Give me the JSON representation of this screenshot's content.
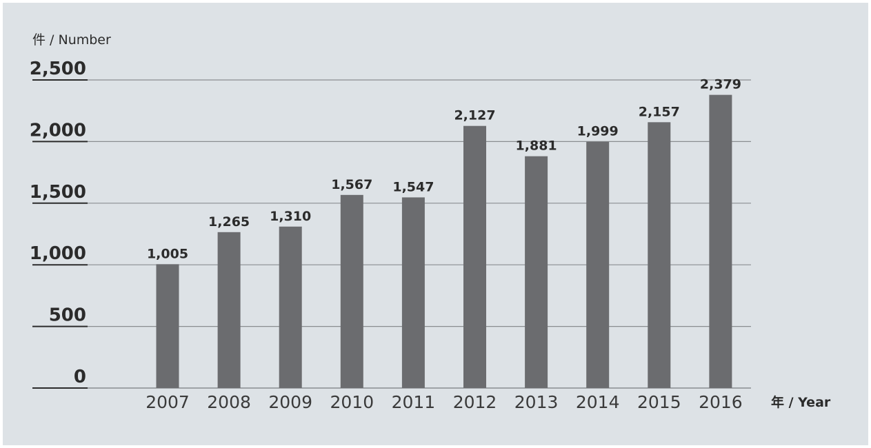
{
  "chart_data": {
    "type": "bar",
    "ylabel": "件 / Number",
    "xlabel": "年 / Year",
    "categories": [
      "2007",
      "2008",
      "2009",
      "2010",
      "2011",
      "2012",
      "2013",
      "2014",
      "2015",
      "2016"
    ],
    "values": [
      1005,
      1265,
      1310,
      1567,
      1547,
      2127,
      1881,
      1999,
      2157,
      2379
    ],
    "value_labels": [
      "1,005",
      "1,265",
      "1,310",
      "1,567",
      "1,547",
      "2,127",
      "1,881",
      "1,999",
      "2,157",
      "2,379"
    ],
    "yticks": [
      0,
      500,
      1000,
      1500,
      2000,
      2500
    ],
    "ytick_labels": [
      "0",
      "500",
      "1,000",
      "1,500",
      "2,000",
      "2,500"
    ],
    "ylim": [
      0,
      2500
    ],
    "grid": true,
    "bar_color": "#6b6c6f",
    "gridline_color": "#8a8d90",
    "background_color": "#dde2e6"
  }
}
